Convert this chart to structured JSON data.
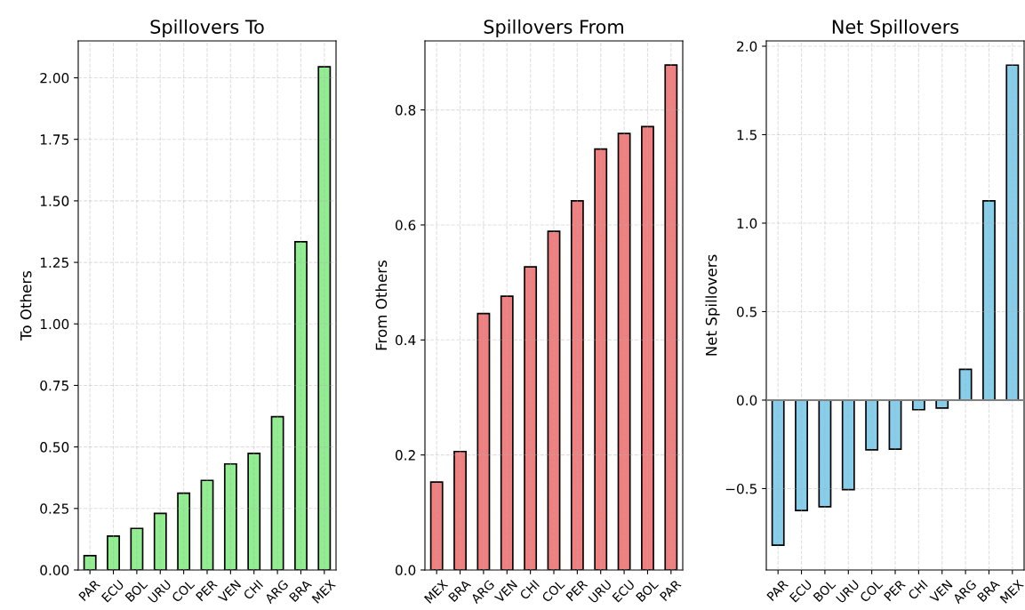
{
  "chart_data": [
    {
      "type": "bar",
      "title": "Spillovers To",
      "ylabel": "To Others",
      "categories": [
        "PAR",
        "ECU",
        "BOL",
        "URU",
        "COL",
        "PER",
        "VEN",
        "CHI",
        "ARG",
        "BRA",
        "MEX"
      ],
      "values": [
        0.058,
        0.138,
        0.169,
        0.23,
        0.312,
        0.364,
        0.431,
        0.474,
        0.623,
        1.334,
        2.045
      ],
      "color": "#90ee90",
      "ylim": [
        0,
        2.15
      ],
      "yticks": [
        {
          "value": 0,
          "label": "0.00"
        },
        0.25,
        {
          "value": 0.5,
          "label": "0.50"
        },
        0.75,
        {
          "value": 1,
          "label": "1.00"
        },
        1.25,
        {
          "value": 1.5,
          "label": "1.50"
        },
        1.75,
        {
          "value": 2,
          "label": "2.00"
        }
      ],
      "grid": true
    },
    {
      "type": "bar",
      "title": "Spillovers From",
      "ylabel": "From Others",
      "categories": [
        "MEX",
        "BRA",
        "ARG",
        "VEN",
        "CHI",
        "COL",
        "PER",
        "URU",
        "ECU",
        "BOL",
        "PAR"
      ],
      "values": [
        0.153,
        0.206,
        0.446,
        0.476,
        0.527,
        0.589,
        0.642,
        0.732,
        0.759,
        0.771,
        0.878
      ],
      "color": "#f08080",
      "ylim": [
        0,
        0.92
      ],
      "yticks": [
        {
          "value": 0,
          "label": "0.0"
        },
        0.2,
        0.4,
        0.6,
        0.8
      ],
      "grid": true
    },
    {
      "type": "bar",
      "title": "Net Spillovers",
      "ylabel": "Net Spillovers",
      "categories": [
        "PAR",
        "ECU",
        "BOL",
        "URU",
        "COL",
        "PER",
        "CHI",
        "VEN",
        "ARG",
        "BRA",
        "MEX"
      ],
      "values": [
        -0.82,
        -0.624,
        -0.603,
        -0.506,
        -0.281,
        -0.277,
        -0.054,
        -0.045,
        0.174,
        1.126,
        1.893
      ],
      "color": "#87ceeb",
      "ylim": [
        -0.96,
        2.03
      ],
      "yticks": [
        {
          "value": -0.5,
          "label": "−0.5"
        },
        {
          "value": 0,
          "label": "0.0"
        },
        0.5,
        {
          "value": 1,
          "label": "1.0"
        },
        1.5,
        {
          "value": 2,
          "label": "2.0"
        }
      ],
      "grid": true,
      "ref_lines": [
        {
          "axis": "y",
          "value": 0,
          "color": "#808080"
        }
      ]
    }
  ]
}
